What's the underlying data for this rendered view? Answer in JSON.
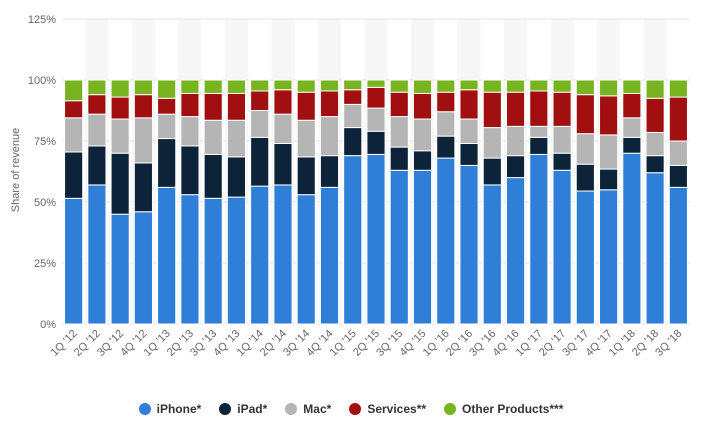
{
  "chart_data": {
    "type": "bar",
    "stacked": true,
    "ylabel": "Share of revenue",
    "ylim": [
      0,
      125
    ],
    "yticks": [
      0,
      25,
      50,
      75,
      100,
      125
    ],
    "ytick_labels": [
      "0%",
      "25%",
      "50%",
      "75%",
      "100%",
      "125%"
    ],
    "grid": true,
    "legend_position": "bottom-center",
    "categories": [
      "1Q '12",
      "2Q '12",
      "3Q '12",
      "4Q '12",
      "1Q '13",
      "2Q '13",
      "3Q '13",
      "4Q '13",
      "1Q '14",
      "2Q '14",
      "3Q '14",
      "4Q '14",
      "1Q '15",
      "2Q '15",
      "3Q '15",
      "4Q '15",
      "1Q '16",
      "2Q '16",
      "3Q '16",
      "4Q '16",
      "1Q '17",
      "2Q '17",
      "3Q '17",
      "4Q '17",
      "1Q '18",
      "2Q '18",
      "3Q '18"
    ],
    "series": [
      {
        "name": "iPhone*",
        "color": "#2f7ed8",
        "values": [
          51.5,
          57,
          45,
          46,
          56,
          53,
          51.5,
          52,
          56.5,
          57,
          53,
          56,
          69,
          69.5,
          63,
          63,
          68,
          65,
          57,
          60,
          69.5,
          63,
          54.5,
          55,
          70,
          62,
          56
        ]
      },
      {
        "name": "iPad*",
        "color": "#0d233a",
        "values": [
          19,
          16,
          25,
          20,
          20,
          20,
          18,
          16.5,
          20,
          17,
          15.5,
          13,
          11.5,
          9.5,
          9.5,
          8,
          9,
          9,
          11,
          9,
          7,
          7,
          11,
          8.5,
          6.5,
          7,
          9
        ]
      },
      {
        "name": "Mac*",
        "color": "#b5b5b5",
        "values": [
          14,
          13,
          14,
          18.5,
          10,
          12,
          14,
          15,
          11,
          12,
          15,
          16,
          9.5,
          9.5,
          12.5,
          13,
          10,
          10,
          12.5,
          12,
          4.5,
          11,
          12.5,
          14,
          8,
          9.5,
          10
        ]
      },
      {
        "name": "Services**",
        "color": "#a20f10",
        "values": [
          7,
          8,
          9,
          9.5,
          6.5,
          9.5,
          11,
          11,
          8,
          10,
          11.5,
          10.5,
          6,
          8.5,
          10,
          10.5,
          8,
          12,
          14.5,
          14,
          14.5,
          14,
          16,
          16,
          10,
          14,
          18
        ]
      },
      {
        "name": "Other Products***",
        "color": "#77b41f",
        "values": [
          8.5,
          6,
          7,
          6,
          7.5,
          5.5,
          5.5,
          5.5,
          4.5,
          4,
          5,
          4.5,
          4,
          3,
          5,
          5.5,
          5,
          4,
          5,
          5,
          4.5,
          5,
          6,
          6.5,
          5.5,
          7.5,
          7
        ]
      }
    ]
  }
}
